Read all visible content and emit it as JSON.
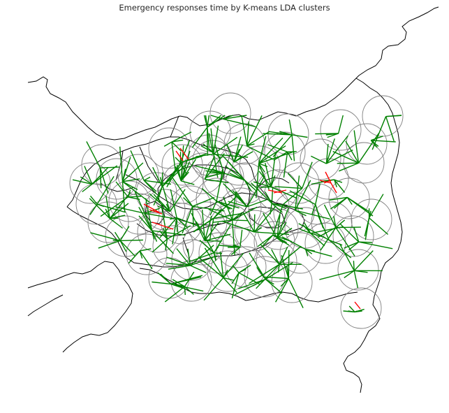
{
  "title": "Emergency responses time by K-means LDA clusters",
  "map": {
    "boundary_color": "#000000",
    "cluster_circle_color": "#808080",
    "fast_response_color": "#008000",
    "slow_response_color": "#ff0000",
    "grid_visible": false
  }
}
